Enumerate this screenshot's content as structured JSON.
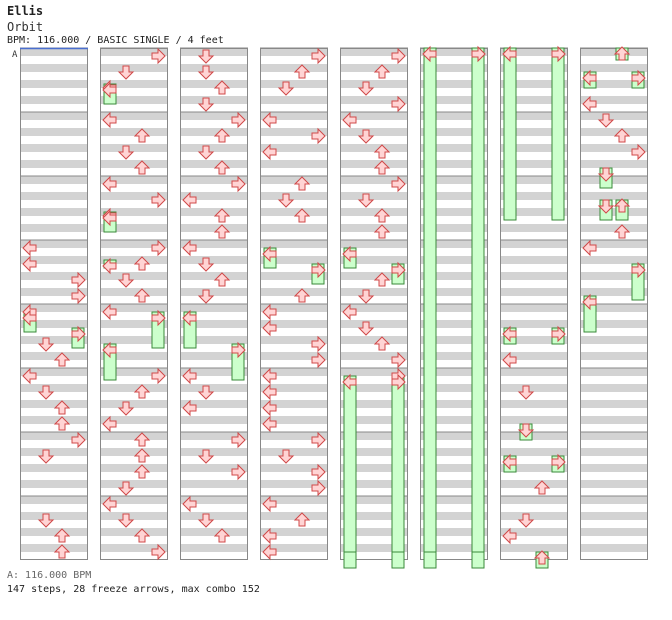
{
  "header": {
    "artist": "Ellis",
    "title": "Orbit",
    "info": "BPM: 116.000 / BASIC SINGLE / 4 feet"
  },
  "marker": {
    "label": "A"
  },
  "footer": {
    "bpm_line": "A: 116.000 BPM",
    "stats_line": "147 steps, 28 freeze arrows, max combo 152"
  },
  "chart": {
    "columns": 8,
    "measures_per_column": 8,
    "colors": {
      "stripe": "#d3d3d3",
      "border": "#888888",
      "arrow_fill": "#ffd4d4",
      "arrow_stroke": "#d04848",
      "freeze_fill": "#ccffcc",
      "freeze_stroke": "#3a8a3a"
    }
  }
}
